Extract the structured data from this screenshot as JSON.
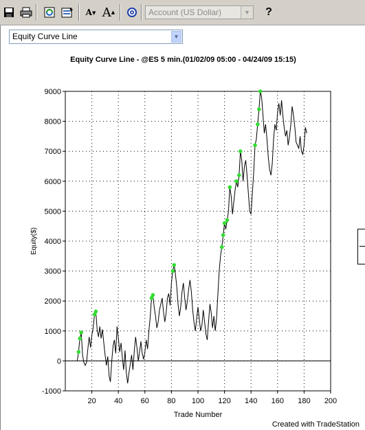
{
  "toolbar": {
    "icons": [
      "save-icon",
      "print-icon",
      "refresh-icon",
      "properties-icon",
      "decrease-font-icon",
      "increase-font-icon",
      "target-icon",
      "help-icon"
    ],
    "increase_font_glyph": "A",
    "decrease_font_glyph": "A",
    "help_glyph": "?",
    "account_placeholder": "Account (US Dollar)"
  },
  "report_selector": {
    "value": "Equity Curve Line"
  },
  "footer": {
    "text": "Created with TradeStation"
  },
  "colors": {
    "line": "#000000",
    "marker": "#33dd33"
  },
  "chart_data": {
    "type": "line",
    "title": "Equity Curve Line - @ES 5 min.(01/02/09 05:00 - 04/24/09 15:15)",
    "xlabel": "Trade Number",
    "ylabel": "Equity($)",
    "xlim": [
      0,
      200
    ],
    "ylim": [
      -1000,
      9000
    ],
    "x_ticks": [
      20,
      40,
      60,
      80,
      100,
      120,
      140,
      160,
      180,
      200
    ],
    "y_ticks": [
      -1000,
      0,
      1000,
      2000,
      3000,
      4000,
      5000,
      6000,
      7000,
      8000,
      9000
    ],
    "grid": true,
    "series": [
      {
        "points": [
          [
            9,
            0
          ],
          [
            10,
            300
          ],
          [
            11,
            750
          ],
          [
            12,
            950
          ],
          [
            13,
            200
          ],
          [
            14,
            -50
          ],
          [
            15,
            -150
          ],
          [
            16,
            -50
          ],
          [
            17,
            400
          ],
          [
            18,
            800
          ],
          [
            19,
            450
          ],
          [
            20,
            850
          ],
          [
            21,
            1100
          ],
          [
            22,
            1550
          ],
          [
            23,
            1650
          ],
          [
            24,
            1050
          ],
          [
            25,
            800
          ],
          [
            26,
            1150
          ],
          [
            27,
            750
          ],
          [
            28,
            1050
          ],
          [
            29,
            600
          ],
          [
            30,
            200
          ],
          [
            31,
            -150
          ],
          [
            32,
            150
          ],
          [
            33,
            -500
          ],
          [
            34,
            -700
          ],
          [
            35,
            0
          ],
          [
            36,
            500
          ],
          [
            37,
            700
          ],
          [
            38,
            250
          ],
          [
            39,
            1150
          ],
          [
            40,
            750
          ],
          [
            41,
            300
          ],
          [
            42,
            600
          ],
          [
            43,
            100
          ],
          [
            44,
            -300
          ],
          [
            45,
            350
          ],
          [
            46,
            -400
          ],
          [
            47,
            -750
          ],
          [
            48,
            -400
          ],
          [
            49,
            -100
          ],
          [
            50,
            200
          ],
          [
            51,
            -300
          ],
          [
            52,
            350
          ],
          [
            53,
            800
          ],
          [
            54,
            450
          ],
          [
            55,
            0
          ],
          [
            56,
            300
          ],
          [
            57,
            650
          ],
          [
            58,
            250
          ],
          [
            59,
            50
          ],
          [
            60,
            300
          ],
          [
            61,
            700
          ],
          [
            62,
            400
          ],
          [
            63,
            1000
          ],
          [
            64,
            1450
          ],
          [
            65,
            2100
          ],
          [
            66,
            2200
          ],
          [
            67,
            1800
          ],
          [
            68,
            1500
          ],
          [
            69,
            1100
          ],
          [
            70,
            1300
          ],
          [
            71,
            1700
          ],
          [
            72,
            1900
          ],
          [
            73,
            2100
          ],
          [
            74,
            1650
          ],
          [
            75,
            1300
          ],
          [
            76,
            1600
          ],
          [
            77,
            2100
          ],
          [
            78,
            2250
          ],
          [
            79,
            1850
          ],
          [
            80,
            2600
          ],
          [
            81,
            3000
          ],
          [
            82,
            3200
          ],
          [
            83,
            2900
          ],
          [
            84,
            2500
          ],
          [
            85,
            1900
          ],
          [
            86,
            1500
          ],
          [
            87,
            1800
          ],
          [
            88,
            2300
          ],
          [
            89,
            2600
          ],
          [
            90,
            2100
          ],
          [
            91,
            1700
          ],
          [
            92,
            2000
          ],
          [
            93,
            2400
          ],
          [
            94,
            2700
          ],
          [
            95,
            2300
          ],
          [
            96,
            1700
          ],
          [
            97,
            1300
          ],
          [
            98,
            1000
          ],
          [
            99,
            1400
          ],
          [
            100,
            1800
          ],
          [
            101,
            1400
          ],
          [
            102,
            1000
          ],
          [
            103,
            1200
          ],
          [
            104,
            1700
          ],
          [
            105,
            1300
          ],
          [
            106,
            900
          ],
          [
            107,
            700
          ],
          [
            108,
            1300
          ],
          [
            109,
            1900
          ],
          [
            110,
            1600
          ],
          [
            111,
            1100
          ],
          [
            112,
            1500
          ],
          [
            113,
            1000
          ],
          [
            114,
            1400
          ],
          [
            115,
            2200
          ],
          [
            116,
            3000
          ],
          [
            117,
            3500
          ],
          [
            118,
            3800
          ],
          [
            119,
            4200
          ],
          [
            120,
            4600
          ],
          [
            121,
            4400
          ],
          [
            122,
            4700
          ],
          [
            123,
            5000
          ],
          [
            124,
            5800
          ],
          [
            125,
            5500
          ],
          [
            126,
            4900
          ],
          [
            127,
            5300
          ],
          [
            128,
            5700
          ],
          [
            129,
            6000
          ],
          [
            130,
            5800
          ],
          [
            131,
            6200
          ],
          [
            132,
            7000
          ],
          [
            133,
            6700
          ],
          [
            134,
            6000
          ],
          [
            135,
            6500
          ],
          [
            136,
            6700
          ],
          [
            137,
            6200
          ],
          [
            138,
            5600
          ],
          [
            139,
            5000
          ],
          [
            140,
            4900
          ],
          [
            141,
            5600
          ],
          [
            142,
            6300
          ],
          [
            143,
            7200
          ],
          [
            144,
            7400
          ],
          [
            145,
            7900
          ],
          [
            146,
            8400
          ],
          [
            147,
            9000
          ],
          [
            148,
            8800
          ],
          [
            149,
            8200
          ],
          [
            150,
            7600
          ],
          [
            151,
            7900
          ],
          [
            152,
            7400
          ],
          [
            153,
            6800
          ],
          [
            154,
            6400
          ],
          [
            155,
            6200
          ],
          [
            156,
            6600
          ],
          [
            157,
            7400
          ],
          [
            158,
            7900
          ],
          [
            159,
            7700
          ],
          [
            160,
            8300
          ],
          [
            161,
            8600
          ],
          [
            162,
            8200
          ],
          [
            163,
            8700
          ],
          [
            164,
            8200
          ],
          [
            165,
            7800
          ],
          [
            166,
            7500
          ],
          [
            167,
            7700
          ],
          [
            168,
            7200
          ],
          [
            169,
            7500
          ],
          [
            170,
            7900
          ],
          [
            171,
            8500
          ],
          [
            172,
            8200
          ],
          [
            173,
            7800
          ],
          [
            174,
            7300
          ],
          [
            175,
            7200
          ],
          [
            176,
            7100
          ],
          [
            177,
            7500
          ],
          [
            178,
            7000
          ],
          [
            179,
            6900
          ],
          [
            180,
            7200
          ],
          [
            181,
            7800
          ],
          [
            182,
            7600
          ]
        ],
        "highlighted": [
          [
            10,
            300
          ],
          [
            11,
            750
          ],
          [
            12,
            950
          ],
          [
            22,
            1550
          ],
          [
            23,
            1650
          ],
          [
            65,
            2100
          ],
          [
            66,
            2200
          ],
          [
            81,
            3000
          ],
          [
            82,
            3200
          ],
          [
            118,
            3800
          ],
          [
            119,
            4200
          ],
          [
            120,
            4600
          ],
          [
            122,
            4700
          ],
          [
            124,
            5800
          ],
          [
            129,
            6000
          ],
          [
            131,
            6200
          ],
          [
            132,
            7000
          ],
          [
            143,
            7200
          ],
          [
            145,
            7900
          ],
          [
            146,
            8400
          ],
          [
            147,
            9000
          ]
        ]
      }
    ]
  }
}
